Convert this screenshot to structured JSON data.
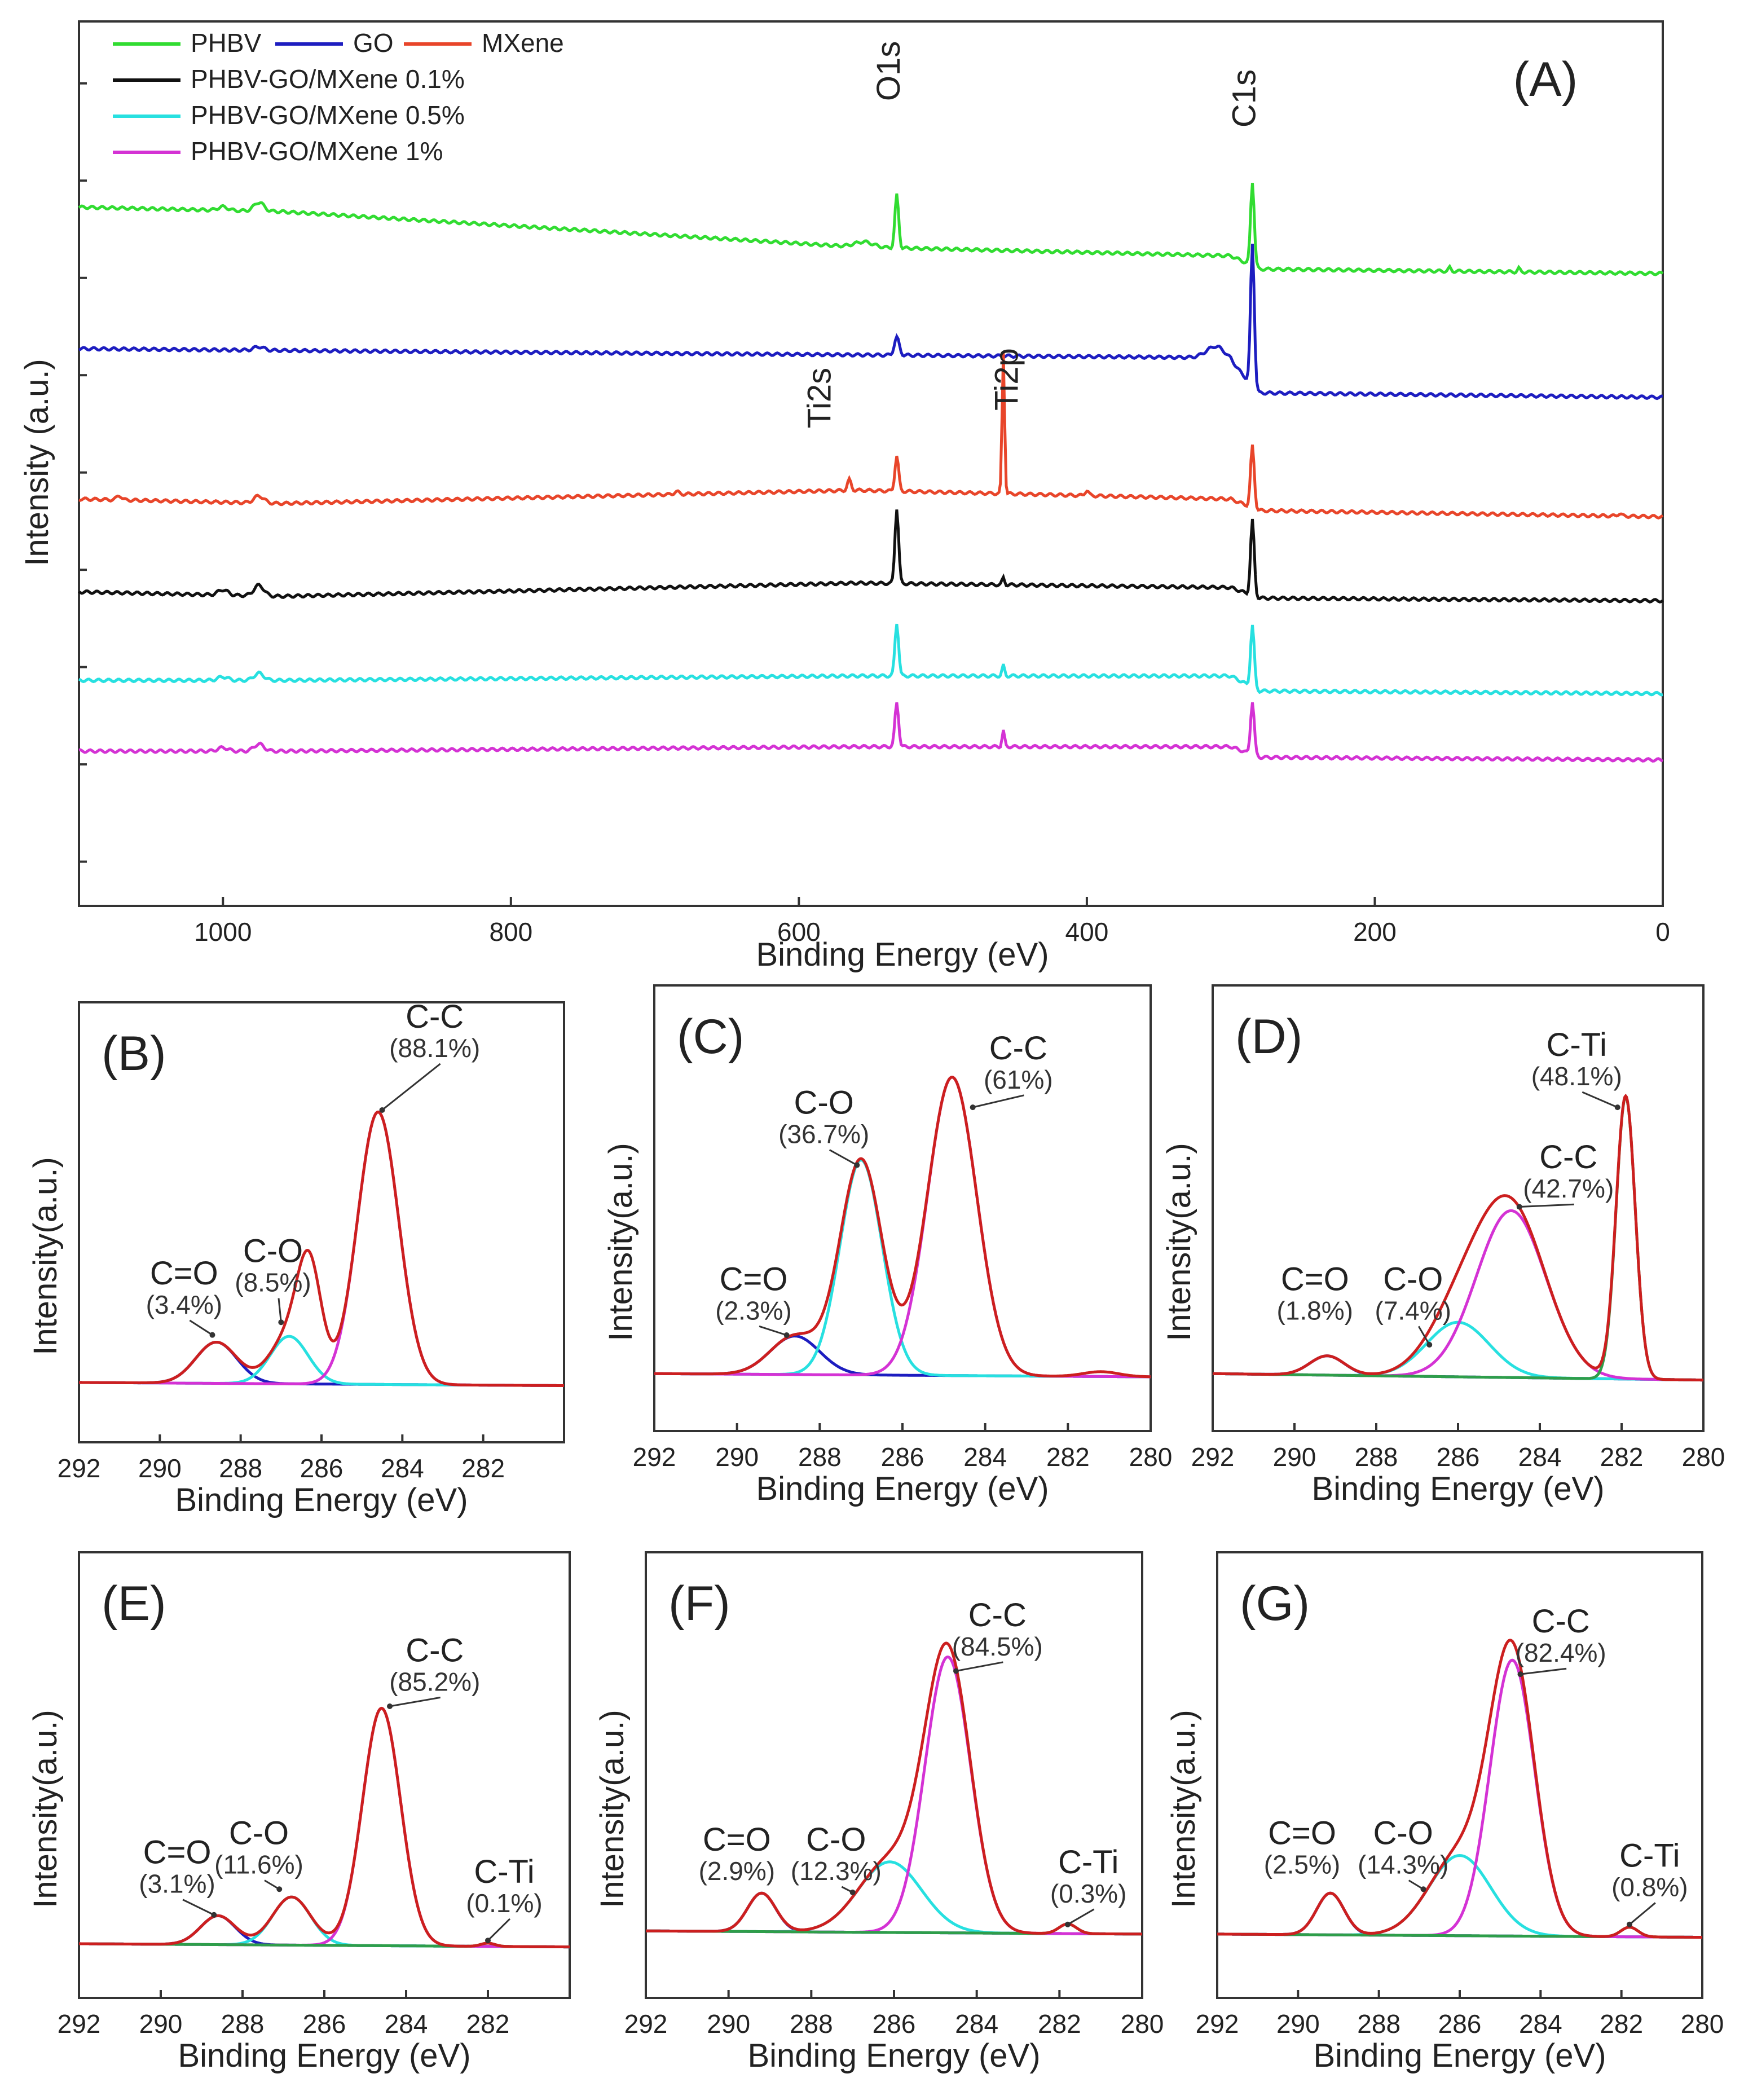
{
  "chart_data": [
    {
      "type": "line",
      "panel_label": "(A)",
      "xlabel": "Binding Energy (eV)",
      "ylabel": "Intensity (a.u.)",
      "xlim": [
        1100,
        0
      ],
      "xticks": [
        1000,
        800,
        600,
        400,
        200,
        0
      ],
      "legend": {
        "position": "top-left"
      },
      "series": [
        {
          "name": "PHBV",
          "color": "#31dc31",
          "baseline": [
            [
              1100,
              0.79
            ],
            [
              960,
              0.785
            ],
            [
              560,
              0.745
            ],
            [
              300,
              0.735
            ],
            [
              280,
              0.72
            ],
            [
              0,
              0.715
            ]
          ],
          "peaks": [
            [
              1000,
              0.004,
              8
            ],
            [
              975,
              0.01,
              8
            ],
            [
              555,
              0.006,
              15
            ],
            [
              532,
              0.06,
              3
            ],
            [
              285,
              0.095,
              3
            ],
            [
              148,
              0.004,
              2
            ],
            [
              100,
              0.004,
              2
            ]
          ]
        },
        {
          "name": "GO",
          "color": "#1d1dc0",
          "baseline": [
            [
              1100,
              0.63
            ],
            [
              960,
              0.628
            ],
            [
              320,
              0.62
            ],
            [
              300,
              0.615
            ],
            [
              280,
              0.58
            ],
            [
              0,
              0.575
            ]
          ],
          "peaks": [
            [
              975,
              0.004,
              8
            ],
            [
              532,
              0.02,
              4
            ],
            [
              310,
              0.015,
              15
            ],
            [
              285,
              0.16,
              3
            ]
          ]
        },
        {
          "name": "MXene",
          "color": "#e8452a",
          "baseline": [
            [
              1100,
              0.46
            ],
            [
              960,
              0.455
            ],
            [
              560,
              0.47
            ],
            [
              300,
              0.46
            ],
            [
              280,
              0.447
            ],
            [
              0,
              0.44
            ]
          ],
          "peaks": [
            [
              1072,
              0.005,
              4
            ],
            [
              975,
              0.008,
              8
            ],
            [
              685,
              0.003,
              4
            ],
            [
              565,
              0.012,
              3
            ],
            [
              532,
              0.04,
              3
            ],
            [
              458,
              0.16,
              2
            ],
            [
              400,
              0.006,
              3
            ],
            [
              285,
              0.07,
              3
            ],
            [
              30,
              0.003,
              3
            ]
          ]
        },
        {
          "name": "PHBV-GO/MXene 0.1%",
          "color": "#111111",
          "baseline": [
            [
              1100,
              0.355
            ],
            [
              960,
              0.35
            ],
            [
              560,
              0.365
            ],
            [
              300,
              0.36
            ],
            [
              280,
              0.348
            ],
            [
              0,
              0.345
            ]
          ],
          "peaks": [
            [
              1000,
              0.006,
              8
            ],
            [
              975,
              0.012,
              8
            ],
            [
              532,
              0.085,
              3
            ],
            [
              458,
              0.008,
              2
            ],
            [
              285,
              0.085,
              3
            ]
          ]
        },
        {
          "name": "PHBV-GO/MXene 0.5%",
          "color": "#27e0e0",
          "baseline": [
            [
              1100,
              0.255
            ],
            [
              960,
              0.255
            ],
            [
              560,
              0.26
            ],
            [
              300,
              0.26
            ],
            [
              280,
              0.243
            ],
            [
              0,
              0.24
            ]
          ],
          "peaks": [
            [
              1000,
              0.004,
              8
            ],
            [
              975,
              0.008,
              8
            ],
            [
              532,
              0.06,
              3
            ],
            [
              458,
              0.012,
              2
            ],
            [
              285,
              0.07,
              3
            ]
          ]
        },
        {
          "name": "PHBV-GO/MXene 1%",
          "color": "#d432d4",
          "baseline": [
            [
              1100,
              0.175
            ],
            [
              960,
              0.175
            ],
            [
              560,
              0.18
            ],
            [
              300,
              0.18
            ],
            [
              280,
              0.168
            ],
            [
              0,
              0.165
            ]
          ],
          "peaks": [
            [
              1000,
              0.004,
              8
            ],
            [
              975,
              0.008,
              8
            ],
            [
              532,
              0.05,
              3
            ],
            [
              458,
              0.018,
              2
            ],
            [
              285,
              0.06,
              3
            ]
          ]
        }
      ],
      "annotations": [
        {
          "text": "O1s",
          "x": 530,
          "y": 0.91
        },
        {
          "text": "C1s",
          "x": 283,
          "y": 0.88
        },
        {
          "text": "Ti2s",
          "x": 578,
          "y": 0.54
        },
        {
          "text": "Ti2p",
          "x": 448,
          "y": 0.56
        }
      ]
    },
    {
      "type": "line",
      "panel_label": "(B)",
      "xlabel": "Binding Energy (eV)",
      "ylabel": "Intensity(a.u.)",
      "xlim": [
        292,
        280
      ],
      "xticks": [
        292,
        290,
        288,
        286,
        284,
        282
      ],
      "ylim": [
        0,
        1
      ],
      "baseline": [
        0.05,
        0.04
      ],
      "components": [
        {
          "name": "C=O",
          "percent": "(3.4%)",
          "center": 288.6,
          "height": 0.13,
          "fwhm": 1.2,
          "color": "#1d1dc0"
        },
        {
          "name": "C-O",
          "percent": "(8.5%)",
          "center": 286.8,
          "height": 0.15,
          "fwhm": 1.1,
          "color": "#27e0e0"
        },
        {
          "name": "C-C",
          "percent": "(88.1%)",
          "center": 284.6,
          "height": 0.86,
          "fwhm": 1.2,
          "color": "#d432d4"
        }
      ],
      "envelope_extra": [
        {
          "center": 286.3,
          "height": 0.33,
          "fwhm": 0.7
        }
      ],
      "envelope_color": "#cc1f1f",
      "labels": [
        {
          "text": "C=O",
          "pct": "(3.4%)",
          "x": 289.4,
          "y": 0.36,
          "arrow": [
            288.7,
            0.2
          ]
        },
        {
          "text": "C-O",
          "pct": "(8.5%)",
          "x": 287.2,
          "y": 0.43,
          "arrow": [
            287.0,
            0.24
          ]
        },
        {
          "text": "C-C",
          "pct": "(88.1%)",
          "x": 283.2,
          "y": 1.17,
          "arrow": [
            284.5,
            0.91
          ]
        }
      ]
    },
    {
      "type": "line",
      "panel_label": "(C)",
      "xlabel": "Binding Energy (eV)",
      "ylabel": "Intensity(a.u.)",
      "xlim": [
        292,
        280
      ],
      "xticks": [
        292,
        290,
        288,
        286,
        284,
        282,
        280
      ],
      "ylim": [
        0,
        1
      ],
      "baseline": [
        0.04,
        0.03
      ],
      "components": [
        {
          "name": "C=O",
          "percent": "(2.3%)",
          "center": 288.6,
          "height": 0.12,
          "fwhm": 1.4,
          "color": "#1d1dc0"
        },
        {
          "name": "C-O",
          "percent": "(36.7%)",
          "center": 287.0,
          "height": 0.67,
          "fwhm": 1.2,
          "color": "#27e0e0"
        },
        {
          "name": "C-C",
          "percent": "(61%)",
          "center": 284.8,
          "height": 0.93,
          "fwhm": 1.4,
          "color": "#d432d4"
        }
      ],
      "envelope_extra": [
        {
          "center": 281.2,
          "height": 0.015,
          "fwhm": 1.0
        }
      ],
      "envelope_color": "#cc1f1f",
      "labels": [
        {
          "text": "C=O",
          "pct": "(2.3%)",
          "x": 289.6,
          "y": 0.3,
          "arrow": [
            288.8,
            0.16
          ]
        },
        {
          "text": "C-O",
          "pct": "(36.7%)",
          "x": 287.9,
          "y": 0.85,
          "arrow": [
            287.1,
            0.69
          ]
        },
        {
          "text": "C-C",
          "pct": "(61%)",
          "x": 283.2,
          "y": 1.02,
          "arrow": [
            284.3,
            0.87
          ]
        }
      ]
    },
    {
      "type": "line",
      "panel_label": "(D)",
      "xlabel": "Binding Energy (eV)",
      "ylabel": "Intensity(a.u.)",
      "xlim": [
        292,
        280
      ],
      "xticks": [
        292,
        290,
        288,
        286,
        284,
        282,
        280
      ],
      "ylim": [
        0,
        1
      ],
      "baseline": [
        0.04,
        0.02
      ],
      "components": [
        {
          "name": "C=O",
          "percent": "(1.8%)",
          "center": 289.2,
          "height": 0.06,
          "fwhm": 1.0,
          "color": "#1d1dc0"
        },
        {
          "name": "C-O",
          "percent": "(7.4%)",
          "center": 286.0,
          "height": 0.17,
          "fwhm": 1.8,
          "color": "#27e0e0"
        },
        {
          "name": "C-C",
          "percent": "(42.7%)",
          "center": 284.7,
          "height": 0.52,
          "fwhm": 2.0,
          "color": "#d432d4"
        },
        {
          "name": "C-Ti",
          "percent": "(48.1%)",
          "center": 281.9,
          "height": 0.88,
          "fwhm": 0.55,
          "color": "#2e9e4a"
        }
      ],
      "envelope_color": "#cc1f1f",
      "labels": [
        {
          "text": "C=O",
          "pct": "(1.8%)",
          "x": 289.5,
          "y": 0.3,
          "arrow": null
        },
        {
          "text": "C-O",
          "pct": "(7.4%)",
          "x": 287.1,
          "y": 0.3,
          "arrow": [
            286.7,
            0.13
          ]
        },
        {
          "text": "C-C",
          "pct": "(42.7%)",
          "x": 283.3,
          "y": 0.68,
          "arrow": [
            284.5,
            0.56
          ]
        },
        {
          "text": "C-Ti",
          "pct": "(48.1%)",
          "x": 283.1,
          "y": 1.03,
          "arrow": [
            282.1,
            0.87
          ]
        }
      ]
    },
    {
      "type": "line",
      "panel_label": "(E)",
      "xlabel": "Binding Energy (eV)",
      "ylabel": "Intensity(a.u.)",
      "xlim": [
        292,
        280
      ],
      "xticks": [
        292,
        290,
        288,
        286,
        284,
        282
      ],
      "ylim": [
        0,
        1
      ],
      "baseline": [
        0.03,
        0.02
      ],
      "components": [
        {
          "name": "C=O",
          "percent": "(3.1%)",
          "center": 288.6,
          "height": 0.09,
          "fwhm": 1.0,
          "color": "#1d1dc0"
        },
        {
          "name": "C-O",
          "percent": "(11.6%)",
          "center": 286.8,
          "height": 0.15,
          "fwhm": 1.1,
          "color": "#27e0e0"
        },
        {
          "name": "C-C",
          "percent": "(85.2%)",
          "center": 284.6,
          "height": 0.74,
          "fwhm": 1.1,
          "color": "#d432d4"
        },
        {
          "name": "C-Ti",
          "percent": "(0.1%)",
          "center": 282.0,
          "height": 0.01,
          "fwhm": 0.4,
          "color": "#2e9e4a"
        }
      ],
      "envelope_color": "#cc1f1f",
      "labels": [
        {
          "text": "C=O",
          "pct": "(3.1%)",
          "x": 289.6,
          "y": 0.28,
          "arrow": [
            288.7,
            0.12
          ]
        },
        {
          "text": "C-O",
          "pct": "(11.6%)",
          "x": 287.6,
          "y": 0.34,
          "arrow": [
            287.1,
            0.2
          ]
        },
        {
          "text": "C-C",
          "pct": "(85.2%)",
          "x": 283.3,
          "y": 0.91,
          "arrow": [
            284.4,
            0.77
          ]
        },
        {
          "text": "C-Ti",
          "pct": "(0.1%)",
          "x": 281.6,
          "y": 0.22,
          "arrow": [
            282.0,
            0.04
          ]
        }
      ]
    },
    {
      "type": "line",
      "panel_label": "(F)",
      "xlabel": "Binding Energy (eV)",
      "ylabel": "Intensity(a.u.)",
      "xlim": [
        292,
        280
      ],
      "xticks": [
        292,
        290,
        288,
        286,
        284,
        282,
        280
      ],
      "ylim": [
        0,
        1
      ],
      "baseline": [
        0.07,
        0.06
      ],
      "components": [
        {
          "name": "C=O",
          "percent": "(2.9%)",
          "center": 289.2,
          "height": 0.12,
          "fwhm": 0.8,
          "color": "#1d1dc0"
        },
        {
          "name": "C-O",
          "percent": "(12.3%)",
          "center": 286.1,
          "height": 0.22,
          "fwhm": 1.8,
          "color": "#27e0e0"
        },
        {
          "name": "C-C",
          "percent": "(84.5%)",
          "center": 284.7,
          "height": 0.86,
          "fwhm": 1.3,
          "color": "#d432d4"
        },
        {
          "name": "C-Ti",
          "percent": "(0.3%)",
          "center": 281.8,
          "height": 0.03,
          "fwhm": 0.5,
          "color": "#2e9e4a"
        }
      ],
      "envelope_color": "#cc1f1f",
      "labels": [
        {
          "text": "C=O",
          "pct": "(2.9%)",
          "x": 289.8,
          "y": 0.32,
          "arrow": null
        },
        {
          "text": "C-O",
          "pct": "(12.3%)",
          "x": 287.4,
          "y": 0.32,
          "arrow": [
            287.0,
            0.19
          ]
        },
        {
          "text": "C-C",
          "pct": "(84.5%)",
          "x": 283.5,
          "y": 1.02,
          "arrow": [
            284.5,
            0.88
          ]
        },
        {
          "text": "C-Ti",
          "pct": "(0.3%)",
          "x": 281.3,
          "y": 0.25,
          "arrow": [
            281.8,
            0.09
          ]
        }
      ]
    },
    {
      "type": "line",
      "panel_label": "(G)",
      "xlabel": "Binding Energy (eV)",
      "ylabel": "Intensity(a.u.)",
      "xlim": [
        292,
        280
      ],
      "xticks": [
        292,
        290,
        288,
        286,
        284,
        282,
        280
      ],
      "ylim": [
        0,
        1
      ],
      "baseline": [
        0.06,
        0.05
      ],
      "components": [
        {
          "name": "C=O",
          "percent": "(2.5%)",
          "center": 289.2,
          "height": 0.13,
          "fwhm": 0.8,
          "color": "#1d1dc0"
        },
        {
          "name": "C-O",
          "percent": "(14.3%)",
          "center": 286.0,
          "height": 0.25,
          "fwhm": 1.8,
          "color": "#27e0e0"
        },
        {
          "name": "C-C",
          "percent": "(82.4%)",
          "center": 284.7,
          "height": 0.86,
          "fwhm": 1.3,
          "color": "#d432d4"
        },
        {
          "name": "C-Ti",
          "percent": "(0.8%)",
          "center": 281.8,
          "height": 0.03,
          "fwhm": 0.5,
          "color": "#2e9e4a"
        }
      ],
      "envelope_color": "#cc1f1f",
      "labels": [
        {
          "text": "C=O",
          "pct": "(2.5%)",
          "x": 289.9,
          "y": 0.34,
          "arrow": null
        },
        {
          "text": "C-O",
          "pct": "(14.3%)",
          "x": 287.4,
          "y": 0.34,
          "arrow": [
            286.9,
            0.2
          ]
        },
        {
          "text": "C-C",
          "pct": "(82.4%)",
          "x": 283.5,
          "y": 1.0,
          "arrow": [
            284.5,
            0.87
          ]
        },
        {
          "text": "C-Ti",
          "pct": "(0.8%)",
          "x": 281.3,
          "y": 0.27,
          "arrow": [
            281.8,
            0.09
          ]
        }
      ]
    }
  ]
}
